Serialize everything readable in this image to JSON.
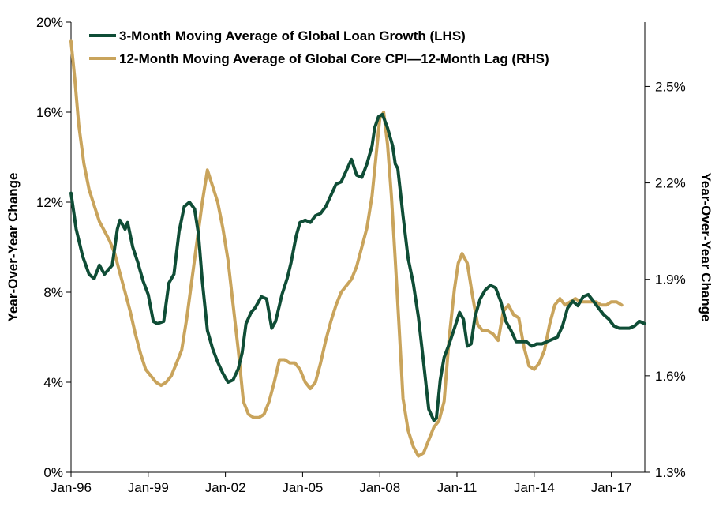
{
  "chart_data": {
    "type": "line",
    "title": "",
    "ylabel_left": "Year-Over-Year Change",
    "ylabel_right": "Year-Over-Year Change",
    "ylim_left": [
      0,
      20
    ],
    "ylim_right": [
      1.3,
      2.7
    ],
    "xlim": [
      1996.0,
      2018.3
    ],
    "x_ticks": [
      {
        "x": 1996.0,
        "label": "Jan-96"
      },
      {
        "x": 1999.0,
        "label": "Jan-99"
      },
      {
        "x": 2002.0,
        "label": "Jan-02"
      },
      {
        "x": 2005.0,
        "label": "Jan-05"
      },
      {
        "x": 2008.0,
        "label": "Jan-08"
      },
      {
        "x": 2011.0,
        "label": "Jan-11"
      },
      {
        "x": 2014.0,
        "label": "Jan-14"
      },
      {
        "x": 2017.0,
        "label": "Jan-17"
      }
    ],
    "y_ticks_left": [
      {
        "v": 0,
        "label": "0%"
      },
      {
        "v": 4,
        "label": "4%"
      },
      {
        "v": 8,
        "label": "8%"
      },
      {
        "v": 12,
        "label": "12%"
      },
      {
        "v": 16,
        "label": "16%"
      },
      {
        "v": 20,
        "label": "20%"
      }
    ],
    "y_ticks_right": [
      {
        "v": 1.3,
        "label": "1.3%"
      },
      {
        "v": 1.6,
        "label": "1.6%"
      },
      {
        "v": 1.9,
        "label": "1.9%"
      },
      {
        "v": 2.2,
        "label": "2.2%"
      },
      {
        "v": 2.5,
        "label": "2.5%"
      }
    ],
    "legend_position": "top",
    "grid": false,
    "series": [
      {
        "name": "3-Month Moving Average of Global Loan Growth (LHS)",
        "axis": "left",
        "color": "#0f4d36",
        "x": [
          1996.0,
          1996.2,
          1996.45,
          1996.7,
          1996.9,
          1997.1,
          1997.3,
          1997.6,
          1997.8,
          1997.9,
          1998.1,
          1998.2,
          1998.4,
          1998.6,
          1998.8,
          1999.0,
          1999.2,
          1999.35,
          1999.6,
          1999.8,
          2000.0,
          2000.2,
          2000.4,
          2000.6,
          2000.8,
          2000.95,
          2001.1,
          2001.3,
          2001.5,
          2001.7,
          2001.9,
          2002.1,
          2002.3,
          2002.5,
          2002.65,
          2002.8,
          2003.0,
          2003.15,
          2003.4,
          2003.6,
          2003.8,
          2003.95,
          2004.2,
          2004.4,
          2004.55,
          2004.75,
          2004.9,
          2005.1,
          2005.3,
          2005.5,
          2005.7,
          2005.9,
          2006.1,
          2006.3,
          2006.5,
          2006.7,
          2006.9,
          2007.1,
          2007.3,
          2007.5,
          2007.7,
          2007.8,
          2007.95,
          2008.1,
          2008.3,
          2008.5,
          2008.6,
          2008.7,
          2008.9,
          2009.1,
          2009.3,
          2009.5,
          2009.7,
          2009.9,
          2010.1,
          2010.2,
          2010.35,
          2010.5,
          2010.7,
          2010.9,
          2011.1,
          2011.25,
          2011.4,
          2011.55,
          2011.7,
          2011.9,
          2012.1,
          2012.3,
          2012.5,
          2012.7,
          2012.9,
          2013.1,
          2013.3,
          2013.5,
          2013.7,
          2013.9,
          2014.1,
          2014.3,
          2014.5,
          2014.7,
          2014.9,
          2015.1,
          2015.3,
          2015.5,
          2015.7,
          2015.9,
          2016.1,
          2016.3,
          2016.5,
          2016.7,
          2016.9,
          2017.1,
          2017.3,
          2017.5,
          2017.7,
          2017.9,
          2018.1,
          2018.3
        ],
        "y": [
          12.4,
          10.8,
          9.6,
          8.8,
          8.6,
          9.2,
          8.8,
          9.2,
          10.8,
          11.2,
          10.8,
          11.1,
          10.0,
          9.3,
          8.5,
          7.9,
          6.7,
          6.6,
          6.7,
          8.4,
          8.8,
          10.7,
          11.8,
          12.0,
          11.7,
          10.6,
          8.5,
          6.3,
          5.5,
          4.9,
          4.4,
          4.0,
          4.1,
          4.6,
          5.3,
          6.6,
          7.1,
          7.3,
          7.8,
          7.7,
          6.4,
          6.7,
          7.9,
          8.6,
          9.3,
          10.5,
          11.1,
          11.2,
          11.1,
          11.4,
          11.5,
          11.8,
          12.3,
          12.8,
          12.9,
          13.4,
          13.9,
          13.2,
          13.1,
          13.7,
          14.5,
          15.3,
          15.8,
          15.9,
          15.3,
          14.5,
          13.7,
          13.5,
          11.4,
          9.5,
          8.4,
          6.9,
          4.9,
          2.8,
          2.3,
          2.4,
          4.1,
          5.1,
          5.7,
          6.4,
          7.1,
          6.8,
          5.6,
          5.7,
          6.9,
          7.7,
          8.1,
          8.3,
          8.2,
          7.6,
          6.7,
          6.3,
          5.8,
          5.8,
          5.8,
          5.6,
          5.7,
          5.7,
          5.8,
          5.9,
          6.0,
          6.5,
          7.3,
          7.6,
          7.4,
          7.8,
          7.9,
          7.6,
          7.3,
          7.0,
          6.8,
          6.5,
          6.4,
          6.4,
          6.4,
          6.5,
          6.7,
          6.6
        ]
      },
      {
        "name": "12-Month Moving Average of Global Core CPI—12-Month Lag (RHS)",
        "axis": "right",
        "color": "#c9a45c",
        "x": [
          1996.0,
          1996.15,
          1996.3,
          1996.5,
          1996.7,
          1996.9,
          1997.1,
          1997.3,
          1997.5,
          1997.7,
          1997.9,
          1998.1,
          1998.3,
          1998.5,
          1998.7,
          1998.9,
          1999.1,
          1999.3,
          1999.5,
          1999.7,
          1999.9,
          2000.1,
          2000.3,
          2000.5,
          2000.7,
          2000.9,
          2001.1,
          2001.3,
          2001.5,
          2001.7,
          2001.9,
          2002.1,
          2002.3,
          2002.5,
          2002.7,
          2002.9,
          2003.1,
          2003.3,
          2003.5,
          2003.7,
          2003.9,
          2004.1,
          2004.3,
          2004.5,
          2004.7,
          2004.9,
          2005.1,
          2005.3,
          2005.5,
          2005.7,
          2005.9,
          2006.1,
          2006.3,
          2006.5,
          2006.7,
          2006.9,
          2007.1,
          2007.3,
          2007.5,
          2007.7,
          2007.85,
          2008.0,
          2008.15,
          2008.3,
          2008.45,
          2008.6,
          2008.75,
          2008.9,
          2009.1,
          2009.3,
          2009.5,
          2009.7,
          2009.9,
          2010.1,
          2010.3,
          2010.5,
          2010.7,
          2010.9,
          2011.05,
          2011.2,
          2011.4,
          2011.6,
          2011.8,
          2012.0,
          2012.2,
          2012.4,
          2012.6,
          2012.8,
          2013.0,
          2013.2,
          2013.4,
          2013.6,
          2013.8,
          2014.0,
          2014.2,
          2014.4,
          2014.6,
          2014.8,
          2015.0,
          2015.2,
          2015.4,
          2015.6,
          2015.8,
          2016.0,
          2016.2,
          2016.4,
          2016.6,
          2016.8,
          2017.0,
          2017.2,
          2017.4
        ],
        "y": [
          2.64,
          2.52,
          2.38,
          2.26,
          2.18,
          2.13,
          2.08,
          2.05,
          2.02,
          1.98,
          1.92,
          1.86,
          1.8,
          1.73,
          1.67,
          1.62,
          1.6,
          1.58,
          1.57,
          1.58,
          1.6,
          1.64,
          1.68,
          1.78,
          1.9,
          2.02,
          2.14,
          2.24,
          2.19,
          2.14,
          2.06,
          1.96,
          1.82,
          1.68,
          1.52,
          1.48,
          1.47,
          1.47,
          1.48,
          1.52,
          1.58,
          1.65,
          1.65,
          1.64,
          1.64,
          1.62,
          1.58,
          1.56,
          1.58,
          1.64,
          1.71,
          1.77,
          1.82,
          1.86,
          1.88,
          1.9,
          1.94,
          2.0,
          2.06,
          2.16,
          2.28,
          2.4,
          2.42,
          2.32,
          2.16,
          1.96,
          1.75,
          1.53,
          1.43,
          1.38,
          1.35,
          1.36,
          1.4,
          1.44,
          1.46,
          1.52,
          1.72,
          1.87,
          1.95,
          1.98,
          1.95,
          1.85,
          1.76,
          1.74,
          1.74,
          1.73,
          1.71,
          1.8,
          1.82,
          1.79,
          1.78,
          1.69,
          1.63,
          1.62,
          1.64,
          1.68,
          1.76,
          1.82,
          1.84,
          1.82,
          1.83,
          1.84,
          1.83,
          1.83,
          1.83,
          1.83,
          1.82,
          1.82,
          1.83,
          1.83,
          1.82
        ]
      }
    ]
  }
}
